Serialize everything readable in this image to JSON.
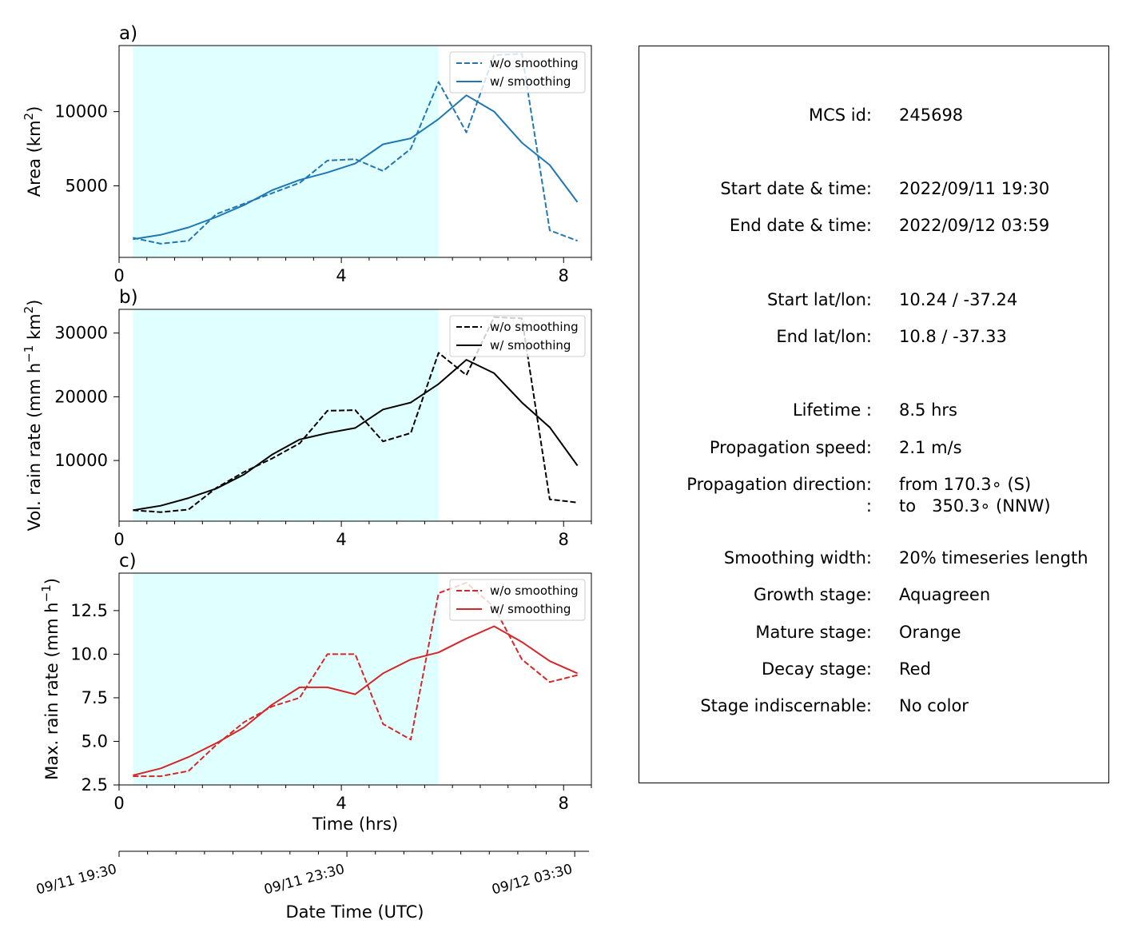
{
  "chart_data": [
    {
      "type": "line",
      "panel_label": "a)",
      "ylabel": "Area  (km²)",
      "xlim": [
        0,
        8.5
      ],
      "ylim": [
        180,
        14450
      ],
      "xticks": [
        0,
        4,
        8
      ],
      "yticks": [
        5000,
        10000
      ],
      "ytick_labels": [
        "5000",
        "10000"
      ],
      "growth_stage_shade": [
        0.25,
        5.75
      ],
      "x": [
        0.25,
        0.75,
        1.25,
        1.75,
        2.25,
        2.75,
        3.25,
        3.75,
        4.25,
        4.75,
        5.25,
        5.75,
        6.25,
        6.75,
        7.25,
        7.75,
        8.25
      ],
      "series": [
        {
          "name": "w/o smoothing",
          "style": "dashed",
          "values": [
            1500,
            1100,
            1300,
            3100,
            3800,
            4500,
            5200,
            6700,
            6800,
            6000,
            7500,
            12000,
            8600,
            13800,
            13900,
            2000,
            1300
          ]
        },
        {
          "name": "w/ smoothing",
          "style": "solid",
          "values": [
            1400,
            1700,
            2200,
            2900,
            3700,
            4700,
            5400,
            5900,
            6500,
            7800,
            8200,
            9500,
            11100,
            10000,
            7900,
            6400,
            3900
          ]
        }
      ],
      "color": "#1f77b4",
      "legend": "upper right"
    },
    {
      "type": "line",
      "panel_label": "b)",
      "ylabel": "Vol. rain rate (mm h⁻¹ km²)",
      "xlim": [
        0,
        8.5
      ],
      "ylim": [
        480,
        33720
      ],
      "xticks": [
        0,
        4,
        8
      ],
      "yticks": [
        10000,
        20000,
        30000
      ],
      "ytick_labels": [
        "10000",
        "20000",
        "30000"
      ],
      "growth_stage_shade": [
        0.25,
        5.75
      ],
      "x": [
        0.25,
        0.75,
        1.25,
        1.75,
        2.25,
        2.75,
        3.25,
        3.75,
        4.25,
        4.75,
        5.25,
        5.75,
        6.25,
        6.75,
        7.25,
        7.75,
        8.25
      ],
      "series": [
        {
          "name": "w/o smoothing",
          "style": "dashed",
          "values": [
            2200,
            1900,
            2300,
            5700,
            8200,
            10300,
            12700,
            17800,
            17900,
            13000,
            14300,
            26900,
            23400,
            32500,
            32300,
            3900,
            3400
          ]
        },
        {
          "name": "w/ smoothing",
          "style": "solid",
          "values": [
            2200,
            2900,
            4100,
            5600,
            7800,
            10900,
            13300,
            14300,
            15100,
            18000,
            19100,
            22000,
            25800,
            23700,
            19100,
            15200,
            9200
          ]
        }
      ],
      "color": "#000000",
      "legend": "upper right"
    },
    {
      "type": "line",
      "panel_label": "c)",
      "ylabel": "Max. rain rate  (mm h⁻¹)",
      "xlabel": "Time (hrs)",
      "xlim": [
        0,
        8.5
      ],
      "ylim": [
        2.5,
        14.65
      ],
      "xticks": [
        0,
        4,
        8
      ],
      "yticks": [
        2.5,
        5.0,
        7.5,
        10.0,
        12.5
      ],
      "ytick_labels": [
        "2.5",
        "5.0",
        "7.5",
        "10.0",
        "12.5"
      ],
      "growth_stage_shade": [
        0.25,
        5.75
      ],
      "x": [
        0.25,
        0.75,
        1.25,
        1.75,
        2.25,
        2.75,
        3.25,
        3.75,
        4.25,
        4.75,
        5.25,
        5.75,
        6.25,
        6.75,
        7.25,
        7.75,
        8.25
      ],
      "series": [
        {
          "name": "w/o smoothing",
          "style": "dashed",
          "values": [
            3.0,
            3.0,
            3.3,
            4.8,
            6.1,
            7.0,
            7.5,
            10.0,
            10.0,
            6.0,
            5.1,
            13.5,
            14.1,
            12.7,
            9.7,
            8.4,
            8.8
          ]
        },
        {
          "name": "w/ smoothing",
          "style": "solid",
          "values": [
            3.05,
            3.45,
            4.1,
            4.9,
            5.8,
            7.1,
            8.1,
            8.1,
            7.7,
            8.9,
            9.7,
            10.1,
            10.9,
            11.6,
            10.7,
            9.6,
            8.9
          ]
        }
      ],
      "color": "#d62728",
      "legend": "upper right"
    }
  ],
  "date_axis": {
    "xlabel": "Date Time (UTC)",
    "ticks": [
      {
        "hrs": 0,
        "label": "09/11 19:30"
      },
      {
        "hrs": 4,
        "label": "09/11 23:30"
      },
      {
        "hrs": 8,
        "label": "09/12 03:30"
      }
    ]
  },
  "shade_color": "#e0ffff",
  "info": [
    {
      "key": "MCS id:",
      "value": "245698"
    },
    {
      "key": "Start date & time:",
      "value": "2022/09/11 19:30"
    },
    {
      "key": "End date & time:",
      "value": "2022/09/12 03:59"
    },
    {
      "key": "Start lat/lon:",
      "value": "10.24 / -37.24"
    },
    {
      "key": "End lat/lon:",
      "value": "10.8 / -37.33"
    },
    {
      "key": "Lifetime :",
      "value": "8.5 hrs"
    },
    {
      "key": "Propagation speed:",
      "value": "2.1 m/s"
    },
    {
      "key": "Propagation direction:",
      "value": "from 170.3∘ (S)"
    },
    {
      "key": ":",
      "value": "to   350.3∘ (NNW)"
    },
    {
      "key": "Smoothing width:",
      "value": "20% timeseries length"
    },
    {
      "key": "Growth stage:",
      "value": "Aquagreen"
    },
    {
      "key": "Mature stage:",
      "value": "Orange"
    },
    {
      "key": "Decay stage:",
      "value": "Red"
    },
    {
      "key": "Stage indiscernable:",
      "value": "No color"
    }
  ]
}
